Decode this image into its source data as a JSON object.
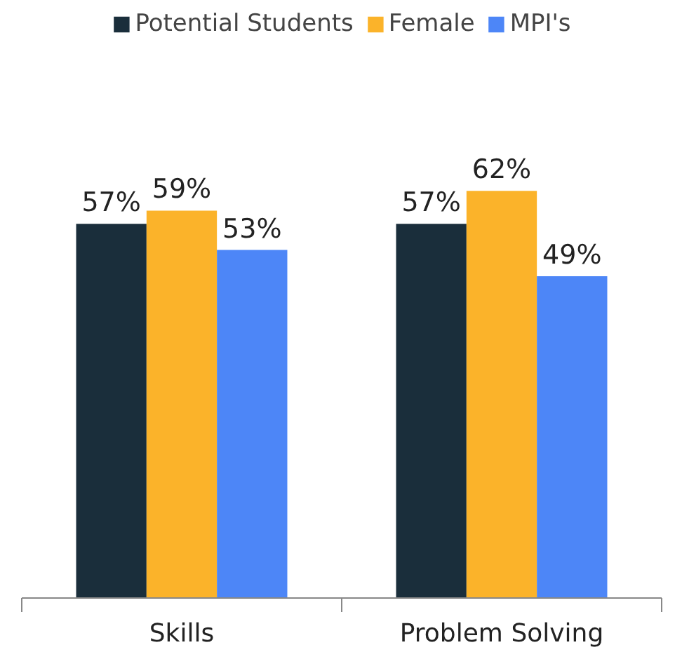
{
  "chart_data": {
    "type": "bar",
    "categories": [
      "Skills",
      "Problem Solving"
    ],
    "series": [
      {
        "name": "Potential Students",
        "color": "#1a2e3b",
        "values": [
          57,
          57
        ],
        "value_labels": [
          "57%",
          "57%"
        ]
      },
      {
        "name": "Female",
        "color": "#fbb32a",
        "values": [
          59,
          62
        ],
        "value_labels": [
          "59%",
          "62%"
        ]
      },
      {
        "name": "MPI's",
        "color": "#4d86f7",
        "values": [
          53,
          49
        ],
        "value_labels": [
          "53%",
          "49%"
        ]
      }
    ],
    "legend": "top"
  }
}
